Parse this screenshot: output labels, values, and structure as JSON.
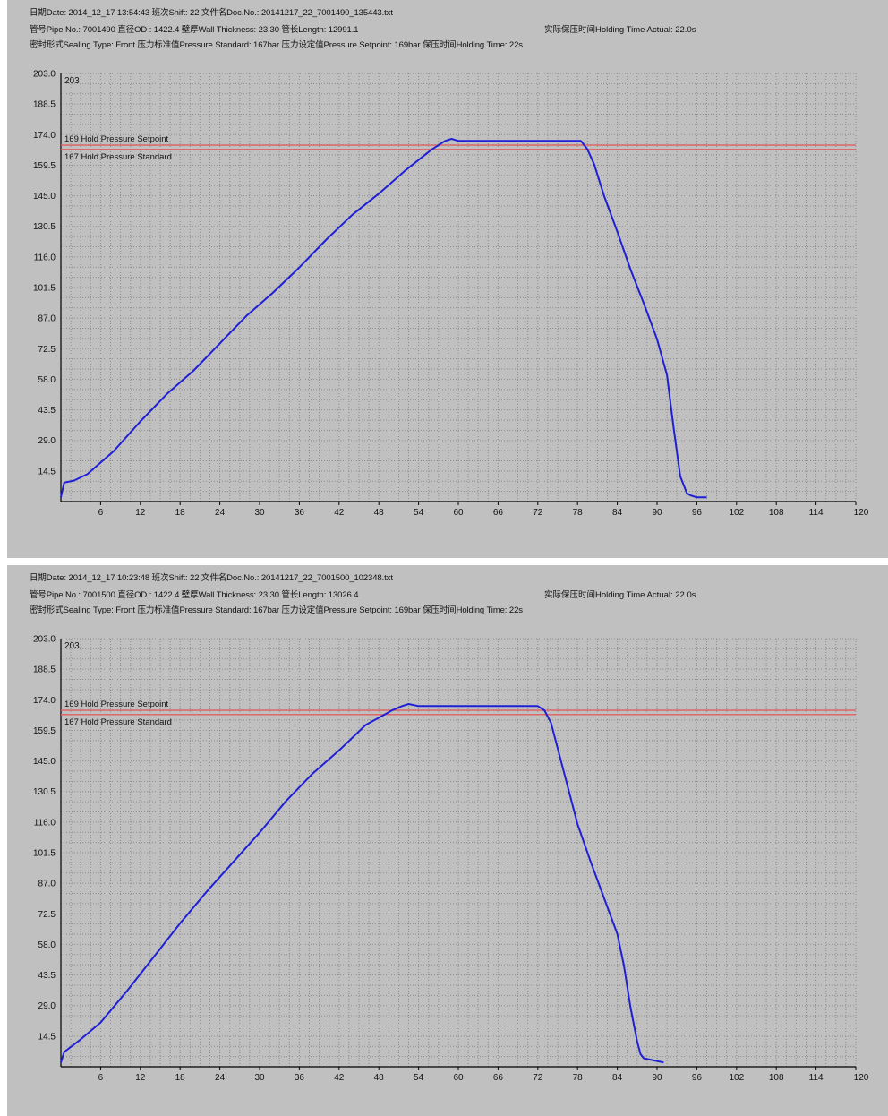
{
  "colors": {
    "background": "#c0c0c0",
    "plot_background": "#c0c0c0",
    "grid": "#8c8c8c",
    "curve": "#1f1fd6",
    "reference_line": "#e06060"
  },
  "panels": [
    {
      "line1": "日期Date: 2014_12_17 13:54:43   班次Shift: 22   文件名Doc.No.: 20141217_22_7001490_135443.txt",
      "line2": "管号Pipe No.: 7001490   直径OD : 1422.4   壁厚Wall Thickness: 23.30   管长Length: 12991.1",
      "line2_right": "实际保压时间Holding Time Actual: 22.0s",
      "line3": "密封形式Sealing Type: Front   压力标准值Pressure Standard: 167bar   压力设定值Pressure Setpoint: 169bar   保压时间Holding Time: 22s"
    },
    {
      "line1": "日期Date: 2014_12_17 10:23:48   班次Shift: 22   文件名Doc.No.: 20141217_22_7001500_102348.txt",
      "line2": "管号Pipe No.: 7001500   直径OD : 1422.4   壁厚Wall Thickness: 23.30   管长Length: 13026.4",
      "line2_right": "实际保压时间Holding Time Actual: 22.0s",
      "line3": "密封形式Sealing Type: Front   压力标准值Pressure Standard: 167bar   压力设定值Pressure Setpoint: 169bar   保压时间Holding Time: 22s"
    }
  ],
  "chart_data": [
    {
      "type": "line",
      "x_ticks": [
        6,
        12,
        18,
        24,
        30,
        36,
        42,
        48,
        54,
        60,
        66,
        72,
        78,
        84,
        90,
        96,
        102,
        108,
        114,
        120
      ],
      "y_ticks": [
        "14.5",
        "29.0",
        "43.5",
        "58.0",
        "72.5",
        "87.0",
        "101.5",
        "116.0",
        "130.5",
        "145.0",
        "159.5",
        "174.0",
        "188.5",
        "203.0"
      ],
      "xlim": [
        0,
        120
      ],
      "ylim": [
        0,
        203
      ],
      "ymax_label": "203",
      "grid": true,
      "reference_lines": [
        {
          "value": 169,
          "label": "169  Hold Pressure Setpoint"
        },
        {
          "value": 167,
          "label": "167  Hold Pressure Standard"
        }
      ],
      "series": [
        {
          "x": [
            0,
            0.5,
            2,
            4,
            8,
            12,
            16,
            20,
            24,
            28,
            32,
            36,
            40,
            44,
            48,
            52,
            56,
            58,
            59,
            60,
            70,
            78.5,
            79.5,
            80.5,
            82,
            84,
            86,
            88,
            90,
            91.5,
            92.5,
            93.5,
            94.5,
            95,
            96,
            97.5
          ],
          "y": [
            2,
            9,
            10,
            13,
            24,
            38,
            51,
            62,
            75,
            88,
            99,
            111,
            124,
            136,
            146,
            157,
            167,
            171,
            172,
            171,
            171,
            171,
            167,
            160,
            145,
            128,
            110,
            94,
            77,
            60,
            35,
            12,
            4,
            3,
            2,
            2
          ]
        }
      ]
    },
    {
      "type": "line",
      "x_ticks": [
        6,
        12,
        18,
        24,
        30,
        36,
        42,
        48,
        54,
        60,
        66,
        72,
        78,
        84,
        90,
        96,
        102,
        108,
        114,
        120
      ],
      "y_ticks": [
        "14.5",
        "29.0",
        "43.5",
        "58.0",
        "72.5",
        "87.0",
        "101.5",
        "116.0",
        "130.5",
        "145.0",
        "159.5",
        "174.0",
        "188.5",
        "203.0"
      ],
      "xlim": [
        0,
        120
      ],
      "ylim": [
        0,
        203
      ],
      "ymax_label": "203",
      "grid": true,
      "reference_lines": [
        {
          "value": 169,
          "label": "169  Hold Pressure Setpoint"
        },
        {
          "value": 167,
          "label": "167  Hold Pressure Standard"
        }
      ],
      "series": [
        {
          "x": [
            0,
            0.5,
            3,
            6,
            10,
            14,
            18,
            22,
            26,
            30,
            34,
            38,
            42,
            46,
            50,
            51.5,
            52.5,
            54,
            62,
            72,
            73,
            74,
            76,
            78,
            80,
            82,
            84,
            85,
            86,
            87,
            87.5,
            88,
            89.5,
            91
          ],
          "y": [
            2,
            7,
            13,
            21,
            36,
            52,
            68,
            83,
            97,
            111,
            126,
            139,
            150,
            162,
            169,
            171,
            172,
            171,
            171,
            171,
            169,
            163,
            139,
            115,
            97,
            80,
            63,
            48,
            28,
            12,
            6,
            4,
            3,
            2
          ]
        }
      ]
    }
  ]
}
